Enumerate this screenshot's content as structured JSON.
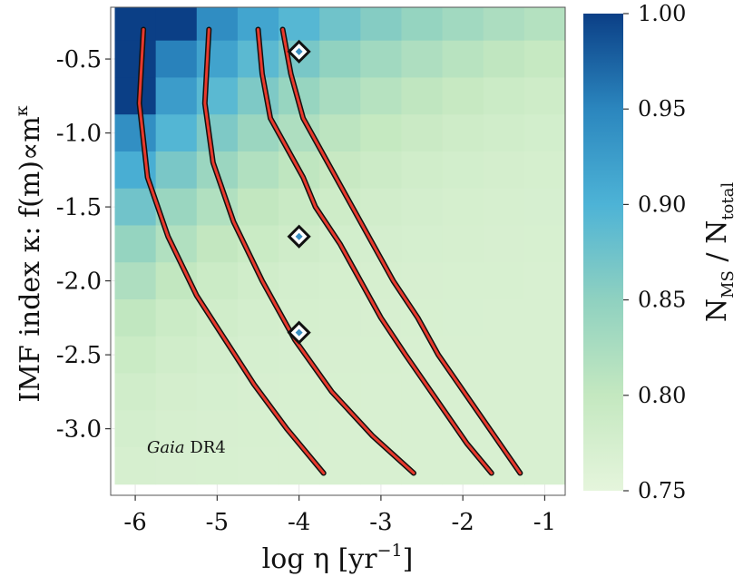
{
  "chart_data": {
    "type": "heatmap",
    "title": "",
    "xlabel": "log η [yr⁻¹]",
    "xlabel_main": "log η [yr",
    "xlabel_sup": "−1",
    "xlabel_close": "]",
    "ylabel": "IMF index κ: f(m)∝m^κ",
    "ylabel_main": "IMF index κ: f(m)∝m",
    "ylabel_sup": "κ",
    "xlim": [
      -6.3,
      -0.75
    ],
    "ylim": [
      -3.45,
      -0.15
    ],
    "xticks": [
      -6,
      -5,
      -4,
      -3,
      -2,
      -1
    ],
    "xtick_labels": [
      "-6",
      "-5",
      "-4",
      "-3",
      "-2",
      "-1"
    ],
    "yticks": [
      -0.5,
      -1.0,
      -1.5,
      -2.0,
      -2.5,
      -3.0
    ],
    "ytick_labels": [
      "-0.5",
      "-1.0",
      "-1.5",
      "-2.0",
      "-2.5",
      "-3.0"
    ],
    "grid": true,
    "x_cells": [
      -6.0,
      -5.5,
      -5.0,
      -4.5,
      -4.0,
      -3.5,
      -3.0,
      -2.5,
      -2.0,
      -1.5,
      -1.0
    ],
    "y_cells": [
      -0.25,
      -0.5,
      -0.75,
      -1.0,
      -1.25,
      -1.5,
      -1.75,
      -2.0,
      -2.25,
      -2.5,
      -2.75,
      -3.0,
      -3.25
    ],
    "colorbar": {
      "label": "N_MS / N_total",
      "label_main": "N",
      "label_sub1": "MS",
      "label_mid": " / N",
      "label_sub2": "total",
      "range": [
        0.75,
        1.0
      ],
      "ticks": [
        1.0,
        0.95,
        0.9,
        0.85,
        0.8,
        0.75
      ],
      "tick_labels": [
        "1.00",
        "0.95",
        "0.90",
        "0.85",
        "0.80",
        "0.75"
      ]
    },
    "annotation": {
      "italic": "Gaia",
      "rest": " DR4",
      "x": -5.9,
      "y": -3.1
    },
    "markers": [
      {
        "x": -4.0,
        "y": -0.45
      },
      {
        "x": -4.0,
        "y": -1.7
      },
      {
        "x": -4.0,
        "y": -2.35
      }
    ],
    "contours": [
      [
        [
          -5.9,
          -0.3
        ],
        [
          -5.95,
          -0.8
        ],
        [
          -5.85,
          -1.3
        ],
        [
          -5.6,
          -1.7
        ],
        [
          -5.25,
          -2.1
        ],
        [
          -4.9,
          -2.4
        ],
        [
          -4.55,
          -2.7
        ],
        [
          -4.15,
          -3.0
        ],
        [
          -3.7,
          -3.3
        ]
      ],
      [
        [
          -5.1,
          -0.3
        ],
        [
          -5.15,
          -0.8
        ],
        [
          -5.05,
          -1.2
        ],
        [
          -4.8,
          -1.6
        ],
        [
          -4.45,
          -2.0
        ],
        [
          -4.05,
          -2.4
        ],
        [
          -3.6,
          -2.75
        ],
        [
          -3.1,
          -3.05
        ],
        [
          -2.6,
          -3.3
        ]
      ],
      [
        [
          -4.5,
          -0.3
        ],
        [
          -4.45,
          -0.6
        ],
        [
          -4.35,
          -0.9
        ],
        [
          -4.15,
          -1.1
        ],
        [
          -3.95,
          -1.3
        ],
        [
          -3.8,
          -1.5
        ],
        [
          -3.5,
          -1.75
        ],
        [
          -3.25,
          -2.0
        ],
        [
          -3.0,
          -2.25
        ],
        [
          -2.7,
          -2.5
        ],
        [
          -2.45,
          -2.7
        ],
        [
          -2.2,
          -2.9
        ],
        [
          -1.95,
          -3.1
        ],
        [
          -1.65,
          -3.3
        ]
      ],
      [
        [
          -4.2,
          -0.3
        ],
        [
          -4.1,
          -0.6
        ],
        [
          -3.95,
          -0.9
        ],
        [
          -3.75,
          -1.1
        ],
        [
          -3.55,
          -1.3
        ],
        [
          -3.35,
          -1.5
        ],
        [
          -3.1,
          -1.75
        ],
        [
          -2.85,
          -2.0
        ],
        [
          -2.55,
          -2.25
        ],
        [
          -2.3,
          -2.5
        ],
        [
          -2.05,
          -2.7
        ],
        [
          -1.8,
          -2.9
        ],
        [
          -1.55,
          -3.1
        ],
        [
          -1.3,
          -3.3
        ]
      ]
    ]
  }
}
